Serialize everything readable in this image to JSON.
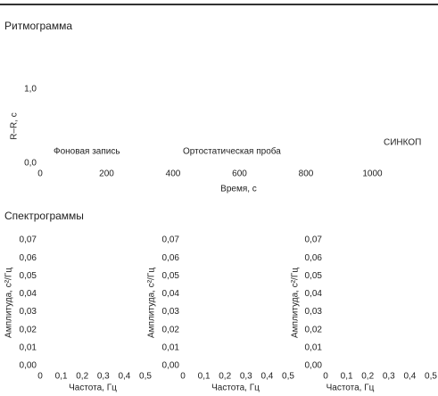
{
  "chart_data": [
    {
      "type": "line",
      "title": "Ритмограмма",
      "xlabel": "Время, с",
      "ylabel": "R–R, с",
      "xlim": [
        0,
        1200
      ],
      "ylim": [
        0,
        1
      ],
      "xticks": [
        0,
        200,
        400,
        600,
        800,
        1000
      ],
      "yticks": [
        {
          "value": 0,
          "label": "0,0"
        },
        {
          "value": 1,
          "label": "1,0"
        }
      ],
      "annotations": [
        "Фоновая запись",
        "Ортостатическая проба",
        "СИНКОП"
      ]
    },
    {
      "type": "line",
      "title": "Спектрограммы",
      "xlabel": "Частота, Гц",
      "ylabel": "Амплитуда, с²/Гц",
      "xlim": [
        0,
        0.5
      ],
      "ylim": [
        0,
        0.07
      ],
      "xticks": [
        0,
        {
          "value": 0.1,
          "label": "0,1"
        },
        {
          "value": 0.2,
          "label": "0,2"
        },
        {
          "value": 0.3,
          "label": "0,3"
        },
        {
          "value": 0.4,
          "label": "0,4"
        },
        {
          "value": 0.5,
          "label": "0,5"
        }
      ],
      "yticks": [
        {
          "value": 0,
          "label": "0,00"
        },
        {
          "value": 0.01,
          "label": "0,01"
        },
        {
          "value": 0.02,
          "label": "0,02"
        },
        {
          "value": 0.03,
          "label": "0,03"
        },
        {
          "value": 0.04,
          "label": "0,04"
        },
        {
          "value": 0.05,
          "label": "0,05"
        },
        {
          "value": 0.06,
          "label": "0,06"
        },
        {
          "value": 0.07,
          "label": "0,07"
        }
      ]
    },
    {
      "type": "line",
      "xlabel": "Частота, Гц",
      "ylabel": "Амплитуда, с²/Гц",
      "xlim": [
        0,
        0.5
      ],
      "ylim": [
        0,
        0.07
      ],
      "xticks": [
        0,
        {
          "value": 0.1,
          "label": "0,1"
        },
        {
          "value": 0.2,
          "label": "0,2"
        },
        {
          "value": 0.3,
          "label": "0,3"
        },
        {
          "value": 0.4,
          "label": "0,4"
        },
        {
          "value": 0.5,
          "label": "0,5"
        }
      ],
      "yticks": [
        {
          "value": 0,
          "label": "0,00"
        },
        {
          "value": 0.01,
          "label": "0,01"
        },
        {
          "value": 0.02,
          "label": "0,02"
        },
        {
          "value": 0.03,
          "label": "0,03"
        },
        {
          "value": 0.04,
          "label": "0,04"
        },
        {
          "value": 0.05,
          "label": "0,05"
        },
        {
          "value": 0.06,
          "label": "0,06"
        },
        {
          "value": 0.07,
          "label": "0,07"
        }
      ]
    },
    {
      "type": "line",
      "xlabel": "Частота, Гц",
      "ylabel": "Амплитуда, с²/Гц",
      "xlim": [
        0,
        0.5
      ],
      "ylim": [
        0,
        0.07
      ],
      "xticks": [
        0,
        {
          "value": 0.1,
          "label": "0,1"
        },
        {
          "value": 0.2,
          "label": "0,2"
        },
        {
          "value": 0.3,
          "label": "0,3"
        },
        {
          "value": 0.4,
          "label": "0,4"
        },
        {
          "value": 0.5,
          "label": "0,5"
        }
      ],
      "yticks": [
        {
          "value": 0,
          "label": "0,00"
        },
        {
          "value": 0.01,
          "label": "0,01"
        },
        {
          "value": 0.02,
          "label": "0,02"
        },
        {
          "value": 0.03,
          "label": "0,03"
        },
        {
          "value": 0.04,
          "label": "0,04"
        },
        {
          "value": 0.05,
          "label": "0,05"
        },
        {
          "value": 0.06,
          "label": "0,06"
        },
        {
          "value": 0.07,
          "label": "0,07"
        }
      ]
    }
  ]
}
